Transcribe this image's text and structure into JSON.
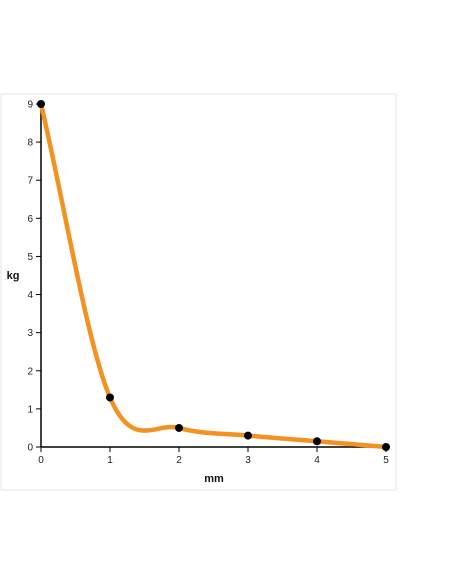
{
  "chart_data": {
    "type": "line",
    "title": "",
    "xlabel": "mm",
    "ylabel": "kg",
    "x": [
      0,
      1,
      2,
      3,
      4,
      5
    ],
    "series": [
      {
        "values": [
          9,
          1.3,
          0.5,
          0.3,
          0.15,
          0
        ]
      }
    ],
    "xlim": [
      0,
      5
    ],
    "ylim": [
      0,
      9
    ],
    "x_ticks": [
      "0",
      "1",
      "2",
      "3",
      "4",
      "5"
    ],
    "y_ticks": [
      "0",
      "1",
      "2",
      "3",
      "4",
      "5",
      "6",
      "7",
      "8",
      "9"
    ],
    "smooth": true,
    "markers": true,
    "grid": false,
    "legend": "none",
    "colors": {
      "line": "#f39121",
      "marker": "#000000",
      "axis": "#000000",
      "frame": "#e6e6e6"
    }
  }
}
